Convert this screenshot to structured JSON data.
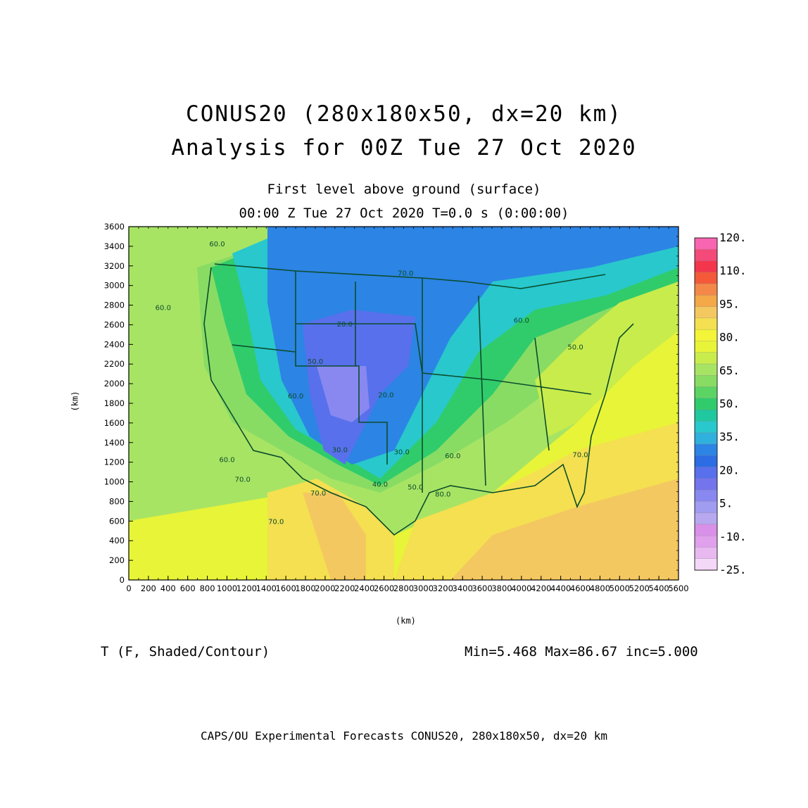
{
  "titles": {
    "line1": "CONUS20 (280x180x50, dx=20 km)",
    "line2": "Analysis for 00Z Tue 27 Oct 2020",
    "level": "First level above ground (surface)",
    "time": "00:00 Z Tue 27 Oct 2020   T=0.0 s (0:00:00)"
  },
  "axes": {
    "x_label": "(km)",
    "y_label": "(km)",
    "x_ticks": [
      "0",
      "200",
      "400",
      "600",
      "800",
      "1000",
      "1200",
      "1400",
      "1600",
      "1800",
      "2000",
      "2200",
      "2400",
      "2600",
      "2800",
      "3000",
      "3200",
      "3400",
      "3600",
      "3800",
      "4000",
      "4200",
      "4400",
      "4600",
      "4800",
      "5000",
      "5200",
      "5400",
      "5600"
    ],
    "y_ticks": [
      "0",
      "200",
      "400",
      "600",
      "800",
      "1000",
      "1200",
      "1400",
      "1600",
      "1800",
      "2000",
      "2200",
      "2400",
      "2600",
      "2800",
      "3000",
      "3200",
      "3400",
      "3600"
    ],
    "x_range": [
      0,
      5600
    ],
    "y_range": [
      0,
      3600
    ]
  },
  "variable": "T (F, Shaded/Contour)",
  "stats": "Min=5.468 Max=86.67 inc=5.000",
  "footer": "CAPS/OU Experimental Forecasts  CONUS20, 280x180x50, dx=20 km",
  "colorbar": {
    "labels": [
      "120.",
      "110.",
      "95.",
      "80.",
      "65.",
      "50.",
      "35.",
      "20.",
      "5.",
      "-10.",
      "-25."
    ],
    "colors": [
      "#f865b0",
      "#f44a7a",
      "#f4364c",
      "#f45a3a",
      "#f48848",
      "#f4a848",
      "#f4c860",
      "#f4e050",
      "#f4f438",
      "#e8f438",
      "#c8ec4c",
      "#a8e464",
      "#88dc64",
      "#5cd464",
      "#30cc6c",
      "#20c8a0",
      "#28c8cc",
      "#30b0dc",
      "#2c84e4",
      "#2c6ce4",
      "#5870ec",
      "#7474ec",
      "#8888f0",
      "#a09cf0",
      "#b8a8f0",
      "#d890e8",
      "#e0a0ec",
      "#e8b8f0",
      "#f4d8f8"
    ]
  },
  "contour_labels": [
    "20.0",
    "20.0",
    "30.0",
    "30.0",
    "40.0",
    "50.0",
    "50.0",
    "60.0",
    "60.0",
    "60.0",
    "60.0",
    "60.0",
    "70.0",
    "70.0",
    "70.0",
    "80.0",
    "70.0",
    "70.0",
    "60.0",
    "50.0"
  ],
  "map_colors": {
    "ocean_west": "#a8e464",
    "ocean_warm": "#f4e050",
    "gulf": "#f4c860",
    "border": "#0c4c2c"
  }
}
